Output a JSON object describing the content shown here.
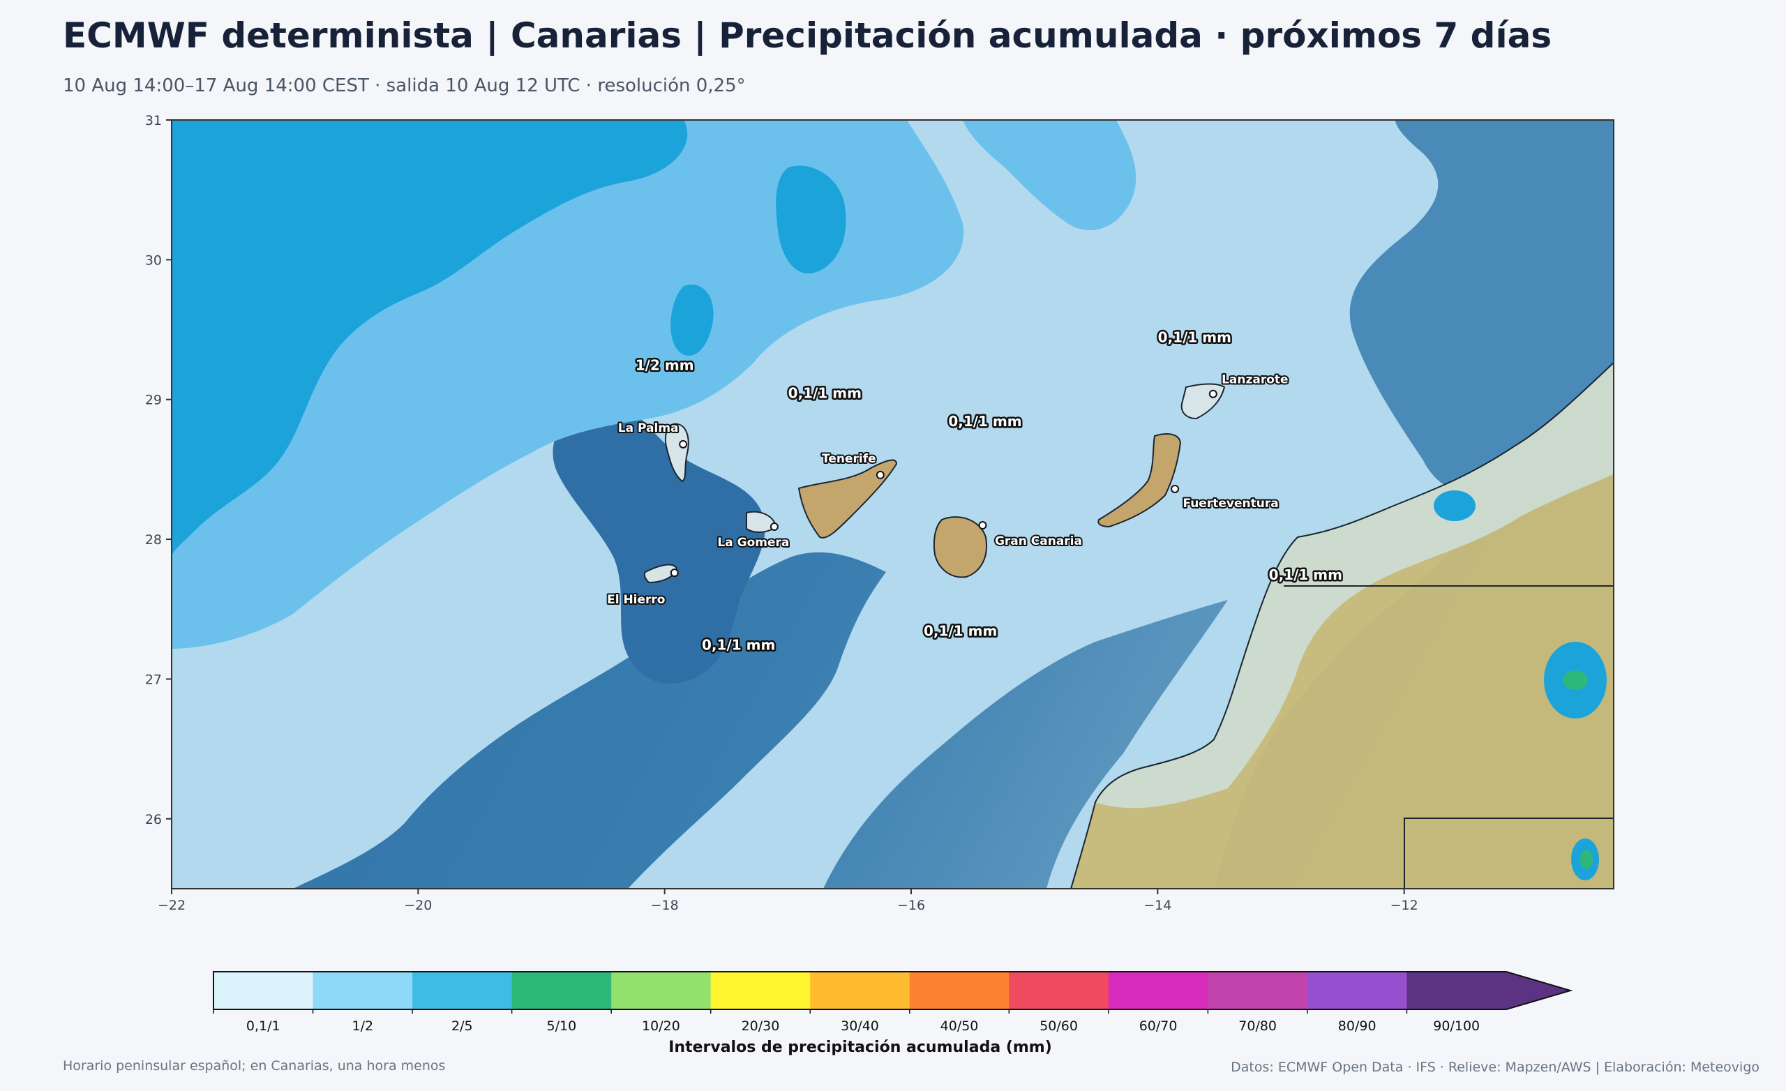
{
  "header": {
    "title": "ECMWF determinista | Canarias | Precipitación acumulada · próximos 7 días",
    "subtitle": "10 Aug 14:00–17 Aug 14:00 CEST · salida 10 Aug 12 UTC · resolución 0,25°"
  },
  "map": {
    "lon_range": [
      -22,
      -10.3
    ],
    "lat_range": [
      25.5,
      31
    ],
    "lon_ticks": [
      -22,
      -20,
      -18,
      -16,
      -14,
      -12
    ],
    "lat_ticks": [
      26,
      27,
      28,
      29,
      30,
      31
    ],
    "lon_tick_labels": [
      "−22",
      "−20",
      "−18",
      "−16",
      "−14",
      "−12"
    ],
    "lat_tick_labels": [
      "26",
      "27",
      "28",
      "29",
      "30",
      "31"
    ],
    "islands": [
      {
        "name": "La Palma",
        "lon": -17.85,
        "lat": 28.68
      },
      {
        "name": "Tenerife",
        "lon": -16.25,
        "lat": 28.46
      },
      {
        "name": "La Gomera",
        "lon": -17.11,
        "lat": 28.09
      },
      {
        "name": "El Hierro",
        "lon": -17.92,
        "lat": 27.76
      },
      {
        "name": "Gran Canaria",
        "lon": -15.42,
        "lat": 28.1
      },
      {
        "name": "Lanzarote",
        "lon": -13.55,
        "lat": 29.04
      },
      {
        "name": "Fuerteventura",
        "lon": -13.86,
        "lat": 28.36
      }
    ],
    "amount_labels": [
      {
        "text": "1/2 mm",
        "lon": -18.0,
        "lat": 29.21
      },
      {
        "text": "0,1/1 mm",
        "lon": -16.7,
        "lat": 29.01
      },
      {
        "text": "0,1/1 mm",
        "lon": -15.4,
        "lat": 28.81
      },
      {
        "text": "0,1/1 mm",
        "lon": -13.7,
        "lat": 29.41
      },
      {
        "text": "0,1/1 mm",
        "lon": -17.4,
        "lat": 27.21
      },
      {
        "text": "0,1/1 mm",
        "lon": -15.6,
        "lat": 27.31
      },
      {
        "text": "0,1/1 mm",
        "lon": -12.8,
        "lat": 27.71
      }
    ]
  },
  "colorbar": {
    "title": "Intervalos de precipitación acumulada (mm)",
    "bins": [
      {
        "label": "0,1/1",
        "color": "#dcf3fc"
      },
      {
        "label": "1/2",
        "color": "#8fd9f8"
      },
      {
        "label": "2/5",
        "color": "#3fbce6"
      },
      {
        "label": "5/10",
        "color": "#2db87a"
      },
      {
        "label": "10/20",
        "color": "#94e06d"
      },
      {
        "label": "20/30",
        "color": "#fff52f"
      },
      {
        "label": "30/40",
        "color": "#ffbc2f"
      },
      {
        "label": "40/50",
        "color": "#ff8230"
      },
      {
        "label": "50/60",
        "color": "#ef4a60"
      },
      {
        "label": "60/70",
        "color": "#d72cbb"
      },
      {
        "label": "70/80",
        "color": "#c243ad"
      },
      {
        "label": "80/90",
        "color": "#9550cf"
      },
      {
        "label": "90/100",
        "color": "#5c3283"
      }
    ],
    "extend_color": "#5c3283"
  },
  "footer": {
    "left": "Horario peninsular español; en Canarias, una hora menos",
    "right": "Datos: ECMWF Open Data · IFS · Relieve: Mapzen/AWS | Elaboración: Meteovigo"
  }
}
